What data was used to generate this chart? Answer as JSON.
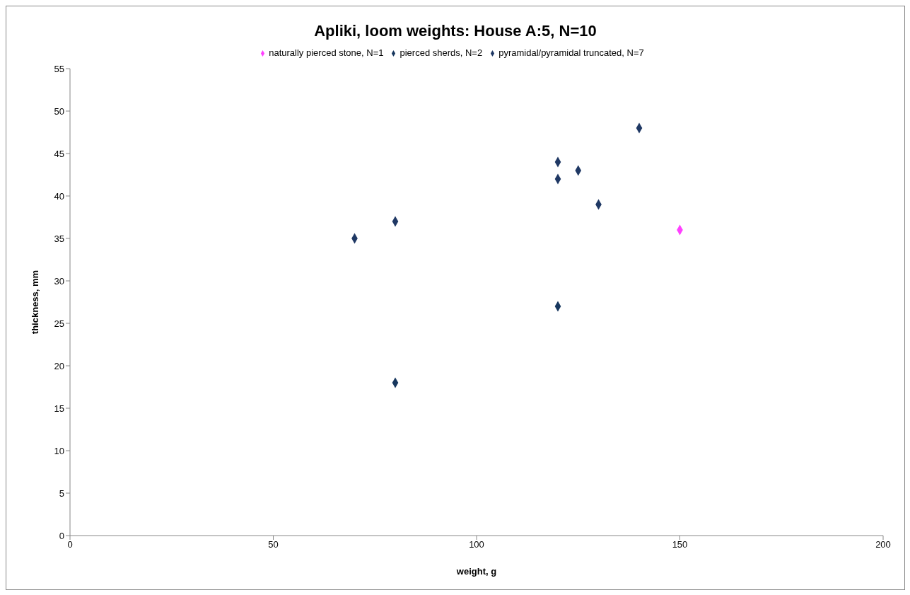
{
  "chart_data": {
    "type": "scatter",
    "title": "Apliki, loom weights: House A:5, N=10",
    "xlabel": "weight, g",
    "ylabel": "thickness, mm",
    "series": [
      {
        "name": "pyramidal/pyramidal  truncated, N=7",
        "color": "#1f3864",
        "x": [
          70,
          80,
          120,
          120,
          125,
          130,
          140
        ],
        "values": [
          35,
          37,
          44,
          42,
          43,
          39,
          48
        ]
      },
      {
        "name": "pierced sherds, N=2",
        "color": "#17375e",
        "x": [
          80,
          120
        ],
        "values": [
          18,
          27
        ]
      },
      {
        "name": "naturally pierced stone, N=1",
        "color": "#ff40ff",
        "x": [
          150
        ],
        "values": [
          36
        ]
      }
    ],
    "xlim": [
      0,
      200
    ],
    "xticks": [
      0,
      50,
      100,
      150,
      200
    ],
    "ylim": [
      0,
      55
    ],
    "yticks": [
      0,
      5,
      10,
      15,
      20,
      25,
      30,
      35,
      40,
      45,
      50,
      55
    ],
    "grid": false,
    "legend": "top",
    "marker": "diamond"
  }
}
